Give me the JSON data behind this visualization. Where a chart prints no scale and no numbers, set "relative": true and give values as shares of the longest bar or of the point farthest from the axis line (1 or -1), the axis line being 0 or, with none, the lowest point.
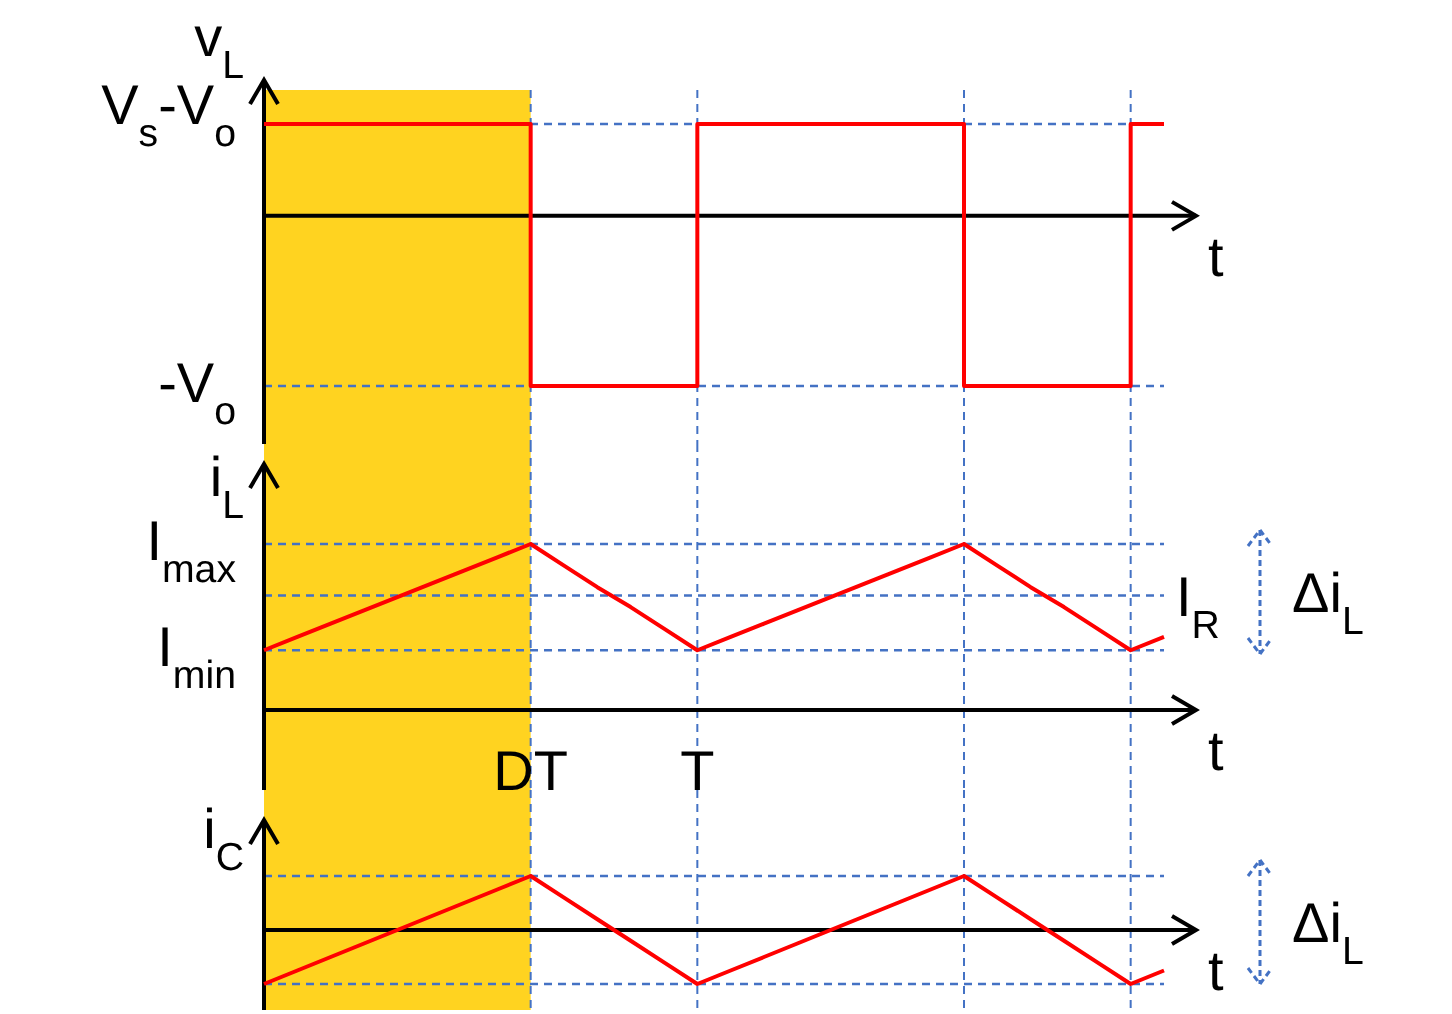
{
  "chart_data": [
    {
      "type": "step",
      "relative": true,
      "ylabel": "v$_{L}$",
      "xlabel": "t",
      "categories": [
        null,
        null,
        null,
        null,
        null,
        null,
        null,
        null,
        null,
        null,
        null,
        null,
        null,
        null,
        null,
        null,
        null,
        null,
        null,
        null,
        null,
        null,
        null,
        null,
        null,
        null,
        null,
        null
      ],
      "series": [
        {
          "color": "#ff0000",
          "values": [
            0.54,
            0.54,
            0.54,
            0.54,
            0.54,
            0.54,
            0.54,
            0.54,
            -1,
            -1,
            -1,
            -1,
            -1,
            0.54,
            0.54,
            0.54,
            0.54,
            0.54,
            0.54,
            0.54,
            0.54,
            -1,
            -1,
            -1,
            -1,
            -1,
            0.54,
            0.54
          ]
        }
      ],
      "ref_lines": [
        {
          "axis": "y",
          "value": 0.54,
          "label": "V$_{s}$-V$_{o}$",
          "color": "#4472c4",
          "line_style": "dashed"
        },
        {
          "axis": "y",
          "value": -1,
          "label": "-V$_{o}$",
          "color": "#4472c4",
          "line_style": "dashed"
        }
      ],
      "grid": "x"
    },
    {
      "type": "line",
      "relative": true,
      "ylabel": "i$_{L}$",
      "xlabel": "t",
      "tick_labels": "x",
      "categories": [
        null,
        null,
        null,
        null,
        null,
        null,
        null,
        null,
        "DT",
        null,
        null,
        null,
        null,
        "T",
        null,
        null,
        null,
        null,
        null,
        null,
        null,
        null,
        null,
        null,
        null,
        null,
        null,
        null
      ],
      "series": [
        {
          "color": "#ff0000",
          "values": [
            0.36,
            0.44,
            0.52,
            0.6,
            0.68,
            0.76,
            0.84,
            0.92,
            1,
            0.87,
            0.74,
            0.62,
            0.49,
            0.36,
            0.44,
            0.52,
            0.6,
            0.68,
            0.76,
            0.84,
            0.92,
            1,
            0.87,
            0.74,
            0.62,
            0.49,
            0.36,
            0.44
          ]
        }
      ],
      "ref_lines": [
        {
          "axis": "y",
          "value": 1,
          "label": "I$_{max}$",
          "color": "#4472c4",
          "line_style": "dashed"
        },
        {
          "axis": "y",
          "value": 0.69,
          "label": null,
          "color": "#4472c4",
          "line_style": "dashed"
        },
        {
          "axis": "y",
          "value": 0.36,
          "label": "I$_{min}$",
          "color": "#4472c4",
          "line_style": "dashed"
        }
      ],
      "grid": "x",
      "annotations": [
        "I$_{R}$",
        "Δi$_{L}$"
      ]
    },
    {
      "type": "line",
      "relative": true,
      "ylabel": "i$_{C}$",
      "xlabel": "t",
      "categories": [
        null,
        null,
        null,
        null,
        null,
        null,
        null,
        null,
        null,
        null,
        null,
        null,
        null,
        null,
        null,
        null,
        null,
        null,
        null,
        null,
        null,
        null,
        null,
        null,
        null,
        null,
        null,
        null
      ],
      "series": [
        {
          "color": "#ff0000",
          "values": [
            -1,
            -0.75,
            -0.5,
            -0.25,
            0,
            0.25,
            0.5,
            0.75,
            1,
            0.6,
            0.2,
            -0.2,
            -0.6,
            -1,
            -0.75,
            -0.5,
            -0.25,
            0,
            0.25,
            0.5,
            0.75,
            1,
            0.6,
            0.2,
            -0.2,
            -0.6,
            -1,
            -0.75
          ]
        }
      ],
      "ref_lines": [
        {
          "axis": "y",
          "value": 1,
          "label": null,
          "color": "#4472c4",
          "line_style": "dashed"
        },
        {
          "axis": "y",
          "value": -1,
          "label": null,
          "color": "#4472c4",
          "line_style": "dashed"
        }
      ],
      "grid": "x",
      "annotations": [
        "Δi$_{L}$"
      ]
    }
  ]
}
